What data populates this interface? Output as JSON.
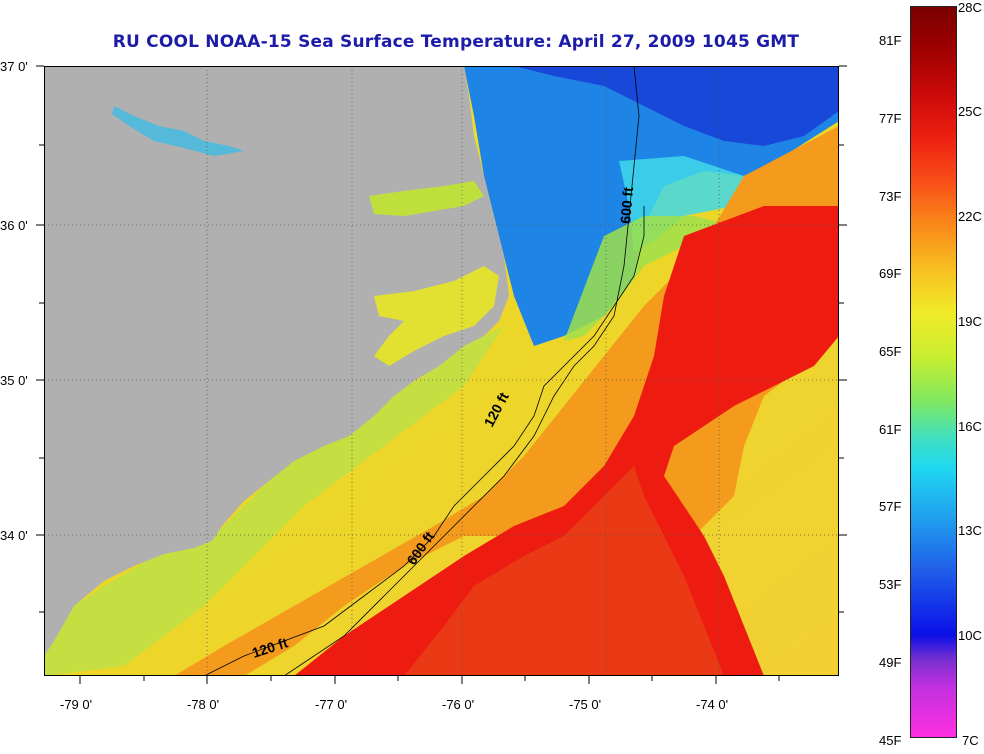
{
  "title": "RU COOL  NOAA-15  Sea Surface Temperature:  April 27, 2009 1045 GMT",
  "lat_labels": [
    "37 0'",
    "36 0'",
    "35 0'",
    "34 0'"
  ],
  "lon_labels": [
    "-79 0'",
    "-78 0'",
    "-77 0'",
    "-76 0'",
    "-75 0'",
    "-74 0'"
  ],
  "isobaths": {
    "shelf": "120 ft",
    "slope": "600 ft"
  },
  "colorbar": {
    "fahrenheit": [
      "81F",
      "77F",
      "73F",
      "69F",
      "65F",
      "61F",
      "57F",
      "53F",
      "49F",
      "45F"
    ],
    "celsius": [
      "28C",
      "25C",
      "22C",
      "19C",
      "16C",
      "13C",
      "10C",
      "7C"
    ]
  },
  "colors": {
    "land": "#b0b0b0",
    "title": "#1c1ca8",
    "gulf_stream": "#ee1c10",
    "cold_water": "#1f7de0",
    "shelf_water": "#e8e82a"
  }
}
